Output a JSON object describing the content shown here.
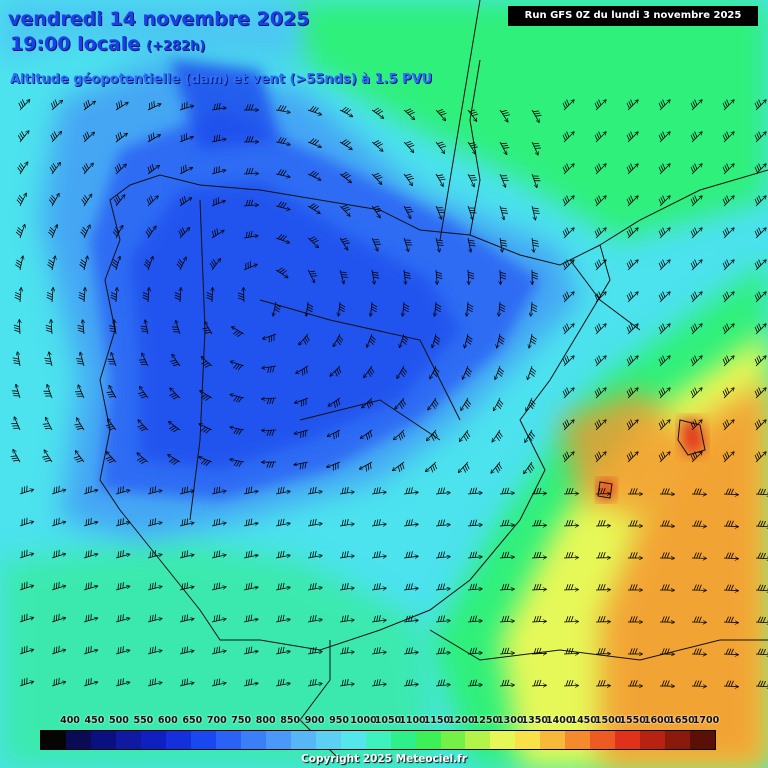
{
  "header": {
    "date": "vendredi 14 novembre 2025",
    "time": "19:00 locale",
    "lead": "(+282h)",
    "subtitle": "Altitude géopotentielle (dam) et vent (>55nds) à 1.5 PVU"
  },
  "run_label": "Run GFS 0Z du lundi 3 novembre 2025",
  "copyright": "Copyright 2025 Meteociel.fr",
  "legend": {
    "labels": [
      "400",
      "450",
      "500",
      "550",
      "600",
      "650",
      "700",
      "750",
      "800",
      "850",
      "900",
      "950",
      "1000",
      "1050",
      "1100",
      "1150",
      "1200",
      "1250",
      "1300",
      "1350",
      "1400",
      "1450",
      "1500",
      "1550",
      "1600",
      "1650",
      "1700"
    ],
    "colors": [
      "#050505",
      "#0a0a55",
      "#0b1080",
      "#0f1aa0",
      "#1020c0",
      "#1430dc",
      "#1a48f0",
      "#2a62f6",
      "#3a7ef8",
      "#4a98f8",
      "#56b6f6",
      "#5cd0f2",
      "#54e6ea",
      "#3ef2c0",
      "#2ef08a",
      "#3cf058",
      "#74f046",
      "#b2f44a",
      "#e6f858",
      "#f8e248",
      "#f8b83a",
      "#f48a2c",
      "#ee5a22",
      "#e0321a",
      "#b82212",
      "#8a1a0c",
      "#5a1006"
    ]
  },
  "map_colors": {
    "ocean_north": "#4cc8f2",
    "low_core": "#1c4cec",
    "low_mid": "#2f6cf4",
    "low_edge": "#44a6f4",
    "band_cyan": "#4ce2ee",
    "band_green": "#2ef07a",
    "band_yellow": "#e6f858",
    "high_orange": "#f4962e",
    "high_red": "#e0321a",
    "coast": "#111111"
  }
}
